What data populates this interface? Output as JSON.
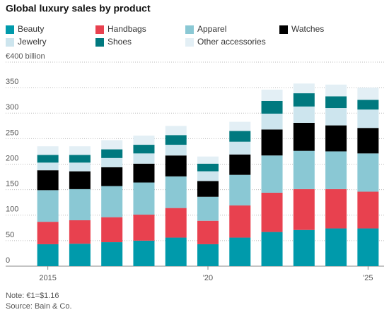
{
  "chart_data": {
    "type": "stacked_bar",
    "title": "Global luxury sales by product",
    "categories": [
      "2015",
      null,
      null,
      null,
      null,
      "'20",
      null,
      null,
      null,
      null,
      "'25"
    ],
    "series": [
      {
        "name": "Beauty",
        "color": "#009aab",
        "values": [
          43,
          44,
          47,
          50,
          56,
          43,
          56,
          67,
          71,
          74,
          74
        ]
      },
      {
        "name": "Handbags",
        "color": "#e8414f",
        "values": [
          44,
          46,
          49,
          51,
          58,
          46,
          63,
          77,
          80,
          77,
          72
        ]
      },
      {
        "name": "Apparel",
        "color": "#8ac8d4",
        "values": [
          62,
          61,
          61,
          63,
          62,
          47,
          60,
          73,
          75,
          74,
          75
        ]
      },
      {
        "name": "Watches",
        "color": "#000000",
        "values": [
          39,
          35,
          37,
          37,
          41,
          31,
          40,
          51,
          55,
          51,
          50
        ]
      },
      {
        "name": "Jewelry",
        "color": "#cde5ee",
        "values": [
          15,
          17,
          18,
          20,
          21,
          19,
          25,
          31,
          32,
          34,
          36
        ]
      },
      {
        "name": "Shoes",
        "color": "#00797f",
        "values": [
          15,
          15,
          17,
          17,
          19,
          15,
          21,
          25,
          26,
          23,
          19
        ]
      },
      {
        "name": "Other accessories",
        "color": "#e3eff5",
        "values": [
          17,
          17,
          18,
          18,
          18,
          14,
          18,
          22,
          19,
          23,
          24
        ]
      }
    ],
    "ylim": [
      0,
      400
    ],
    "yticks": [
      0,
      50,
      100,
      150,
      200,
      250,
      300,
      350,
      {
        "value": 400,
        "label": "€400 billion"
      }
    ],
    "grid": true,
    "notes": [
      "Note: €1=$1.16",
      "Source: Bain & Co."
    ]
  }
}
